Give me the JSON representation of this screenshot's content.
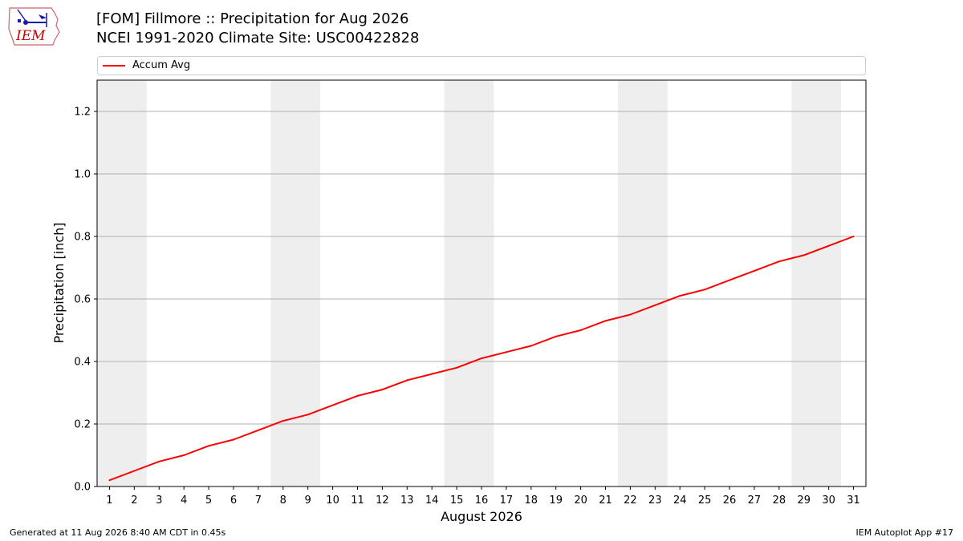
{
  "header": {
    "title_line1": "[FOM] Fillmore :: Precipitation for Aug 2026",
    "title_line2": "NCEI 1991-2020 Climate Site: USC00422828"
  },
  "logo": {
    "text": "IEM",
    "accent": "#cc0000"
  },
  "footer": {
    "left": "Generated at 11 Aug 2026 8:40 AM CDT in 0.45s",
    "right": "IEM Autoplot App #17"
  },
  "chart_data": {
    "type": "line",
    "title": "[FOM] Fillmore :: Precipitation for Aug 2026",
    "subtitle": "NCEI 1991-2020 Climate Site: USC00422828",
    "xlabel": "August 2026",
    "ylabel": "Precipitation [inch]",
    "xlim": [
      0.5,
      31.5
    ],
    "ylim": [
      0,
      1.3
    ],
    "yticks": [
      0.0,
      0.2,
      0.4,
      0.6,
      0.8,
      1.0,
      1.2
    ],
    "ytick_labels": [
      "0.0",
      "0.2",
      "0.4",
      "0.6",
      "0.8",
      "1.0",
      "1.2"
    ],
    "xticks": [
      1,
      2,
      3,
      4,
      5,
      6,
      7,
      8,
      9,
      10,
      11,
      12,
      13,
      14,
      15,
      16,
      17,
      18,
      19,
      20,
      21,
      22,
      23,
      24,
      25,
      26,
      27,
      28,
      29,
      30,
      31
    ],
    "xtick_labels": [
      "1",
      "2",
      "3",
      "4",
      "5",
      "6",
      "7",
      "8",
      "9",
      "10",
      "11",
      "12",
      "13",
      "14",
      "15",
      "16",
      "17",
      "18",
      "19",
      "20",
      "21",
      "22",
      "23",
      "24",
      "25",
      "26",
      "27",
      "28",
      "29",
      "30",
      "31"
    ],
    "grid": "horizontal",
    "legend_position": "top",
    "weekend_shading": [
      [
        1,
        2
      ],
      [
        8,
        9
      ],
      [
        15,
        16
      ],
      [
        22,
        23
      ],
      [
        29,
        30
      ]
    ],
    "shade_color": "#eeeeee",
    "series": [
      {
        "name": "Accum Avg",
        "color": "#ff0000",
        "x": [
          1,
          2,
          3,
          4,
          5,
          6,
          7,
          8,
          9,
          10,
          11,
          12,
          13,
          14,
          15,
          16,
          17,
          18,
          19,
          20,
          21,
          22,
          23,
          24,
          25,
          26,
          27,
          28,
          29,
          30,
          31
        ],
        "values": [
          0.02,
          0.05,
          0.08,
          0.1,
          0.13,
          0.15,
          0.18,
          0.21,
          0.23,
          0.26,
          0.29,
          0.31,
          0.34,
          0.36,
          0.38,
          0.41,
          0.43,
          0.45,
          0.48,
          0.5,
          0.53,
          0.55,
          0.58,
          0.61,
          0.63,
          0.66,
          0.69,
          0.72,
          0.74,
          0.77,
          0.8
        ]
      }
    ]
  }
}
